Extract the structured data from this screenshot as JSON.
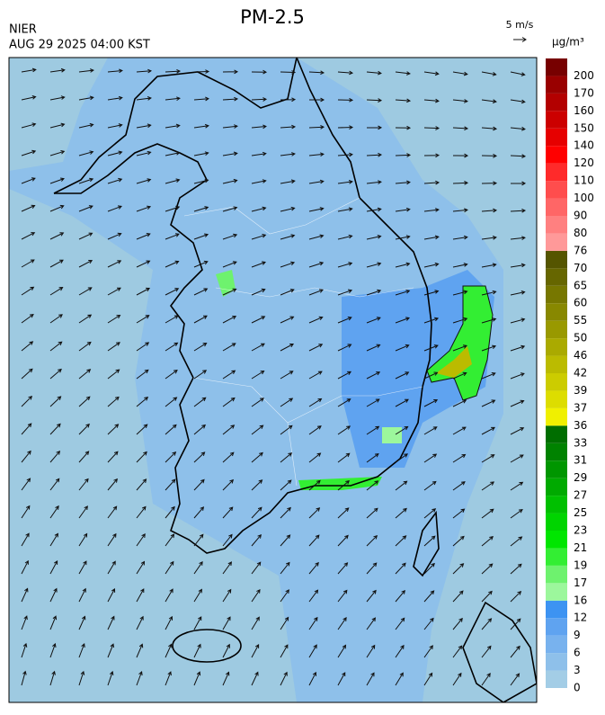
{
  "header": {
    "title": "PM-2.5",
    "source": "NIER",
    "datetime": "AUG 29 2025 04:00 KST",
    "wind_scale": "5 m/s"
  },
  "colorbar": {
    "unit": "μg/m³",
    "levels": [
      0,
      3,
      6,
      9,
      12,
      16,
      17,
      19,
      21,
      23,
      25,
      27,
      29,
      31,
      33,
      36,
      37,
      39,
      42,
      46,
      50,
      55,
      60,
      65,
      70,
      76,
      80,
      90,
      100,
      110,
      120,
      140,
      150,
      160,
      170,
      200
    ],
    "colors": [
      "#a3cde6",
      "#8ec0ea",
      "#78b2ee",
      "#5fa3f0",
      "#3d93f2",
      "#9cf79c",
      "#6ef26e",
      "#33ee33",
      "#00e600",
      "#00d400",
      "#00c000",
      "#00aa00",
      "#009600",
      "#008200",
      "#006e00",
      "#f0f000",
      "#dddd00",
      "#cccc00",
      "#bbbb00",
      "#aaaa00",
      "#999900",
      "#888800",
      "#777700",
      "#666600",
      "#555500",
      "#ff9999",
      "#ff8080",
      "#ff6666",
      "#ff4d4d",
      "#ff2a2a",
      "#ff0000",
      "#e60000",
      "#cc0000",
      "#b30000",
      "#990000",
      "#770000"
    ]
  }
}
